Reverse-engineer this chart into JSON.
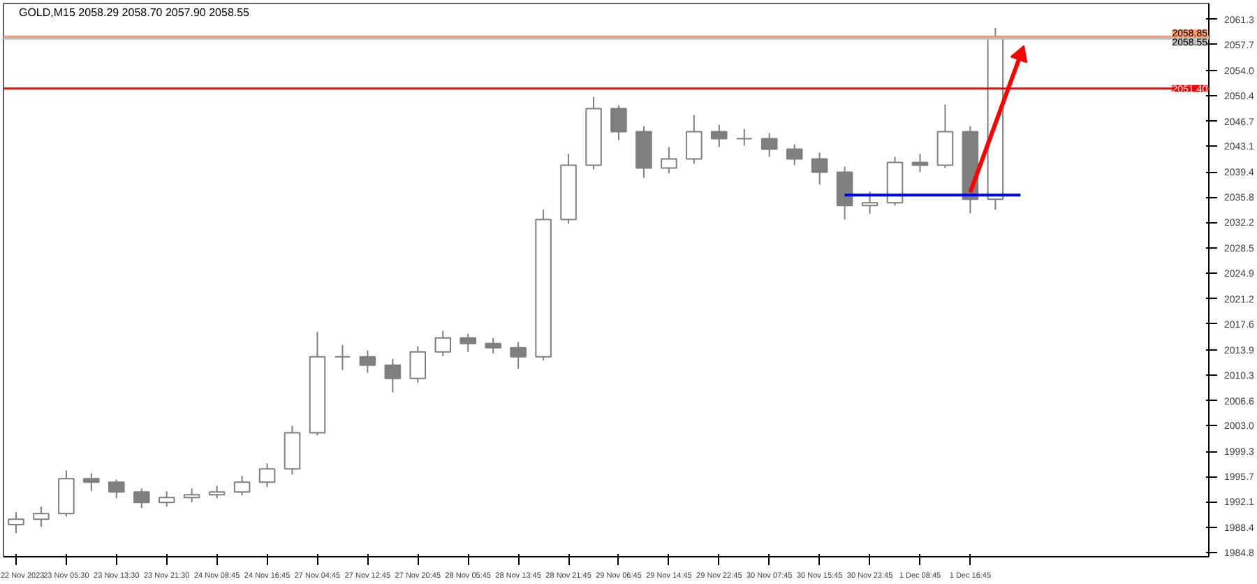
{
  "chart_data": {
    "type": "candlestick",
    "title": "GOLD,M15  2058.29 2058.70 2057.90 2058.55",
    "color": "#7f7f7f",
    "categories": [
      "22 Nov 2023",
      null,
      "23 Nov 05:30",
      null,
      "23 Nov 13:30",
      null,
      "23 Nov 21:30",
      null,
      "24 Nov 08:45",
      null,
      "24 Nov 16:45",
      null,
      "27 Nov 04:45",
      null,
      "27 Nov 12:45",
      null,
      "27 Nov 20:45",
      null,
      "28 Nov 05:45",
      null,
      "28 Nov 13:45",
      null,
      "28 Nov 21:45",
      null,
      "29 Nov 06:45",
      null,
      "29 Nov 14:45",
      null,
      "29 Nov 22:45",
      null,
      "30 Nov 07:45",
      null,
      "30 Nov 15:45",
      null,
      "30 Nov 23:45",
      null,
      "1 Dec 08:45",
      null,
      "1 Dec 16:45",
      null,
      null,
      null,
      null,
      null,
      null,
      null,
      null,
      null
    ],
    "ohlc": [
      [
        1988.8,
        1990.6,
        1987.6,
        1989.6
      ],
      [
        1989.6,
        1991.4,
        1988.5,
        1990.4
      ],
      [
        1990.4,
        1996.6,
        1990.0,
        1995.4
      ],
      [
        1995.4,
        1996.2,
        1993.6,
        1994.9
      ],
      [
        1994.9,
        1995.3,
        1992.6,
        1993.5
      ],
      [
        1993.5,
        1994.0,
        1991.2,
        1992.0
      ],
      [
        1992.0,
        1993.6,
        1991.4,
        1992.7
      ],
      [
        1992.7,
        1994.0,
        1992.0,
        1993.1
      ],
      [
        1993.1,
        1994.4,
        1992.6,
        1993.5
      ],
      [
        1993.5,
        1995.8,
        1993.0,
        1994.9
      ],
      [
        1994.9,
        1997.6,
        1994.2,
        1996.8
      ],
      [
        1996.8,
        2003.0,
        1996.0,
        2002.0
      ],
      [
        2002.0,
        2016.5,
        2001.6,
        2012.9
      ],
      [
        2012.9,
        2014.6,
        2011.0,
        2012.9
      ],
      [
        2012.9,
        2013.8,
        2010.6,
        2011.7
      ],
      [
        2011.7,
        2012.6,
        2007.8,
        2009.8
      ],
      [
        2009.8,
        2014.4,
        2009.2,
        2013.6
      ],
      [
        2013.6,
        2016.6,
        2013.0,
        2015.6
      ],
      [
        2015.6,
        2016.2,
        2013.6,
        2014.8
      ],
      [
        2014.8,
        2015.6,
        2013.4,
        2014.2
      ],
      [
        2014.2,
        2015.0,
        2011.2,
        2012.9
      ],
      [
        2012.9,
        2034.0,
        2012.4,
        2032.6
      ],
      [
        2032.6,
        2042.0,
        2032.0,
        2040.4
      ],
      [
        2040.4,
        2050.2,
        2039.8,
        2048.5
      ],
      [
        2048.5,
        2049.0,
        2044.0,
        2045.2
      ],
      [
        2045.2,
        2046.0,
        2038.6,
        2040.0
      ],
      [
        2040.0,
        2043.0,
        2039.2,
        2041.3
      ],
      [
        2041.3,
        2047.6,
        2040.6,
        2045.2
      ],
      [
        2045.2,
        2046.2,
        2043.0,
        2044.2
      ],
      [
        2044.2,
        2045.6,
        2043.2,
        2044.2
      ],
      [
        2044.2,
        2045.0,
        2041.6,
        2042.7
      ],
      [
        2042.7,
        2043.4,
        2040.4,
        2041.3
      ],
      [
        2041.3,
        2042.2,
        2037.6,
        2039.4
      ],
      [
        2039.4,
        2040.2,
        2032.6,
        2034.6
      ],
      [
        2034.6,
        2036.6,
        2033.4,
        2035.0
      ],
      [
        2035.0,
        2041.6,
        2034.6,
        2040.8
      ],
      [
        2040.8,
        2042.0,
        2039.4,
        2040.4
      ],
      [
        2040.4,
        2049.1,
        2040.0,
        2045.2
      ],
      [
        2045.2,
        2046.0,
        2033.5,
        2035.5
      ],
      [
        2035.5,
        2060.1,
        2034.0,
        2058.8
      ],
      null,
      null,
      null,
      null,
      null,
      null,
      null,
      null
    ],
    "series": [
      {
        "type": "line",
        "color": "#0000ff",
        "values": [
          null,
          null,
          null,
          null,
          null,
          null,
          null,
          null,
          null,
          null,
          null,
          null,
          null,
          null,
          null,
          null,
          null,
          null,
          null,
          null,
          null,
          null,
          null,
          null,
          null,
          null,
          null,
          null,
          null,
          null,
          null,
          null,
          null,
          2036.1,
          2036.1,
          2036.1,
          2036.1,
          2036.1,
          2036.1,
          2036.1,
          2036.1,
          null,
          null,
          null,
          null,
          null,
          null,
          null
        ]
      },
      {
        "type": "line",
        "marker": "triangle",
        "color": "#ff0000",
        "values": [
          null,
          null,
          null,
          null,
          null,
          null,
          null,
          null,
          null,
          null,
          null,
          null,
          null,
          null,
          null,
          null,
          null,
          null,
          null,
          null,
          null,
          null,
          null,
          null,
          null,
          null,
          null,
          null,
          null,
          null,
          null,
          null,
          null,
          null,
          null,
          null,
          null,
          null,
          2036.5,
          null,
          2056.2,
          null,
          null,
          null,
          null,
          null,
          null,
          null
        ]
      }
    ],
    "ref_lines": [
      {
        "axis": "y",
        "value": 2058.85,
        "label": "2058.85",
        "color": "#ff9966"
      },
      {
        "axis": "y",
        "value": 2058.55,
        "label": "2058.55",
        "color": "#c0c0c0"
      },
      {
        "axis": "y",
        "value": 2051.4,
        "label": "2051.40",
        "color": "#ff0000"
      }
    ],
    "ylim": [
      1984.2,
      2063.6
    ],
    "yticks": [
      1984.8,
      1988.4,
      1992.1,
      1995.7,
      1999.3,
      {
        "value": 2003,
        "label": "2003.0"
      },
      2006.6,
      2010.3,
      2013.9,
      2017.6,
      2021.2,
      2024.9,
      2028.5,
      2032.2,
      2035.8,
      2039.4,
      2043.1,
      2046.7,
      2050.4,
      {
        "value": 2054,
        "label": "2054.0"
      },
      2057.7,
      2061.3
    ],
    "grid": false
  }
}
